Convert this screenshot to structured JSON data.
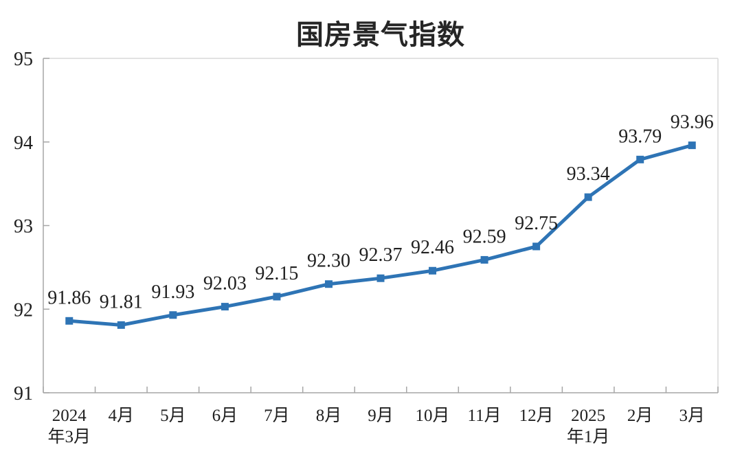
{
  "page": {
    "background": "#ffffff"
  },
  "chart_data": {
    "type": "line",
    "title": "国房景气指数",
    "x_labels": [
      [
        "2024",
        "年3月"
      ],
      [
        "4月"
      ],
      [
        "5月"
      ],
      [
        "6月"
      ],
      [
        "7月"
      ],
      [
        "8月"
      ],
      [
        "9月"
      ],
      [
        "10月"
      ],
      [
        "11月"
      ],
      [
        "12月"
      ],
      [
        "2025",
        "年1月"
      ],
      [
        "2月"
      ],
      [
        "3月"
      ]
    ],
    "values": [
      91.86,
      91.81,
      91.93,
      92.03,
      92.15,
      92.3,
      92.37,
      92.46,
      92.59,
      92.75,
      93.34,
      93.79,
      93.96
    ],
    "ylim": [
      91,
      95
    ],
    "y_ticks": [
      91,
      92,
      93,
      94,
      95
    ],
    "grid": false,
    "legend": false,
    "marker": "square",
    "data_labels_shown": true,
    "colors": {
      "line": "#2E74B5",
      "marker": "#2E74B5",
      "axis": "#A6A6A6",
      "border": "#D9D9D9",
      "text": "#1F1F1F",
      "title": "#262626"
    }
  }
}
